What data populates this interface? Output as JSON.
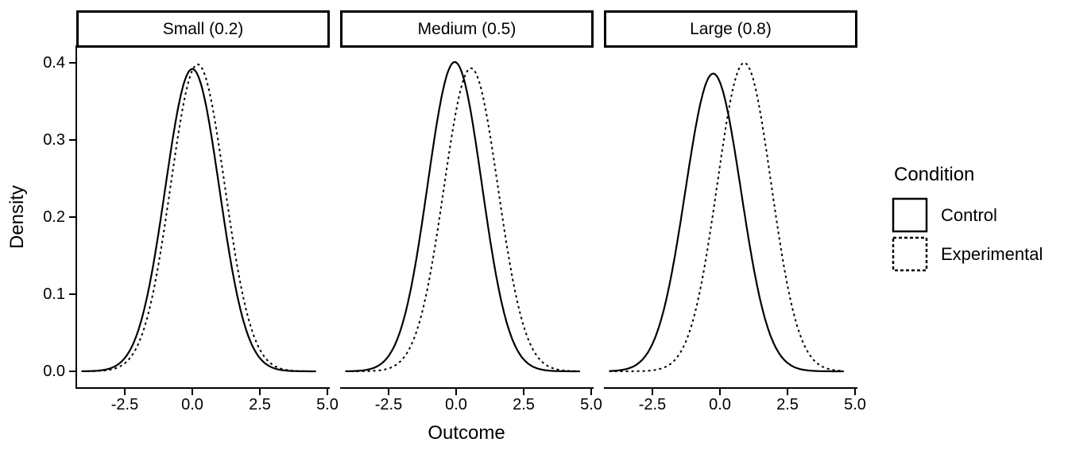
{
  "figure": {
    "background": "#ffffff",
    "ink": "#000000"
  },
  "chart_data": {
    "type": "line",
    "subtype": "kernel-density",
    "title": "",
    "xlabel": "Outcome",
    "ylabel": "Density",
    "grid": "off",
    "xlim": [
      -4.3,
      5.1
    ],
    "ylim": [
      -0.02,
      0.42
    ],
    "x_ticks": [
      -2.5,
      0.0,
      2.5,
      5.0
    ],
    "x_tick_labels": [
      "-2.5",
      "0.0",
      "2.5",
      "5.0"
    ],
    "y_ticks": [
      0.0,
      0.1,
      0.2,
      0.3,
      0.4
    ],
    "y_tick_labels": [
      "0.0",
      "0.1",
      "0.2",
      "0.3",
      "0.4"
    ],
    "legend": {
      "title": "Condition",
      "position": "right",
      "entries": [
        {
          "label": "Control",
          "linetype": "solid"
        },
        {
          "label": "Experimental",
          "linetype": "dashed"
        }
      ]
    },
    "x_samples": [
      -4.0,
      -3.5,
      -3.0,
      -2.5,
      -2.0,
      -1.5,
      -1.0,
      -0.5,
      0.0,
      0.5,
      1.0,
      1.5,
      2.0,
      2.5,
      3.0,
      3.5,
      4.0,
      4.5
    ],
    "facets": [
      {
        "label": "Small (0.2)",
        "series": [
          {
            "name": "Control",
            "linetype": "solid",
            "mean": 0.0,
            "sd": 1.0,
            "peak": 0.392,
            "y": [
              0.0,
              0.001,
              0.004,
              0.017,
              0.053,
              0.127,
              0.238,
              0.346,
              0.392,
              0.346,
              0.238,
              0.127,
              0.053,
              0.017,
              0.004,
              0.001,
              0.0,
              0.0
            ]
          },
          {
            "name": "Experimental",
            "linetype": "dashed",
            "mean": 0.2,
            "sd": 1.0,
            "peak": 0.398,
            "y": [
              0.0,
              0.0,
              0.002,
              0.01,
              0.035,
              0.094,
              0.194,
              0.311,
              0.39,
              0.381,
              0.289,
              0.171,
              0.079,
              0.028,
              0.008,
              0.002,
              0.0,
              0.0
            ]
          }
        ]
      },
      {
        "label": "Medium (0.5)",
        "series": [
          {
            "name": "Control",
            "linetype": "solid",
            "mean": -0.05,
            "sd": 1.0,
            "peak": 0.401,
            "y": [
              0.0,
              0.001,
              0.005,
              0.02,
              0.06,
              0.14,
              0.255,
              0.363,
              0.4,
              0.345,
              0.231,
              0.121,
              0.049,
              0.016,
              0.004,
              0.001,
              0.0,
              0.0
            ]
          },
          {
            "name": "Experimental",
            "linetype": "dashed",
            "mean": 0.55,
            "sd": 1.0,
            "peak": 0.393,
            "y": [
              0.0,
              0.0,
              0.001,
              0.004,
              0.015,
              0.048,
              0.118,
              0.226,
              0.338,
              0.393,
              0.355,
              0.25,
              0.138,
              0.059,
              0.02,
              0.005,
              0.001,
              0.0
            ]
          }
        ]
      },
      {
        "label": "Large (0.8)",
        "series": [
          {
            "name": "Control",
            "linetype": "solid",
            "mean": -0.25,
            "sd": 1.03,
            "peak": 0.386,
            "y": [
              0.001,
              0.003,
              0.011,
              0.036,
              0.091,
              0.185,
              0.296,
              0.375,
              0.375,
              0.296,
              0.185,
              0.091,
              0.036,
              0.011,
              0.003,
              0.001,
              0.0,
              0.0
            ]
          },
          {
            "name": "Experimental",
            "linetype": "dashed",
            "mean": 0.9,
            "sd": 1.0,
            "peak": 0.4,
            "y": [
              0.0,
              0.0,
              0.0,
              0.001,
              0.006,
              0.022,
              0.066,
              0.15,
              0.267,
              0.369,
              0.398,
              0.334,
              0.218,
              0.111,
              0.044,
              0.014,
              0.003,
              0.001
            ]
          }
        ]
      }
    ]
  }
}
